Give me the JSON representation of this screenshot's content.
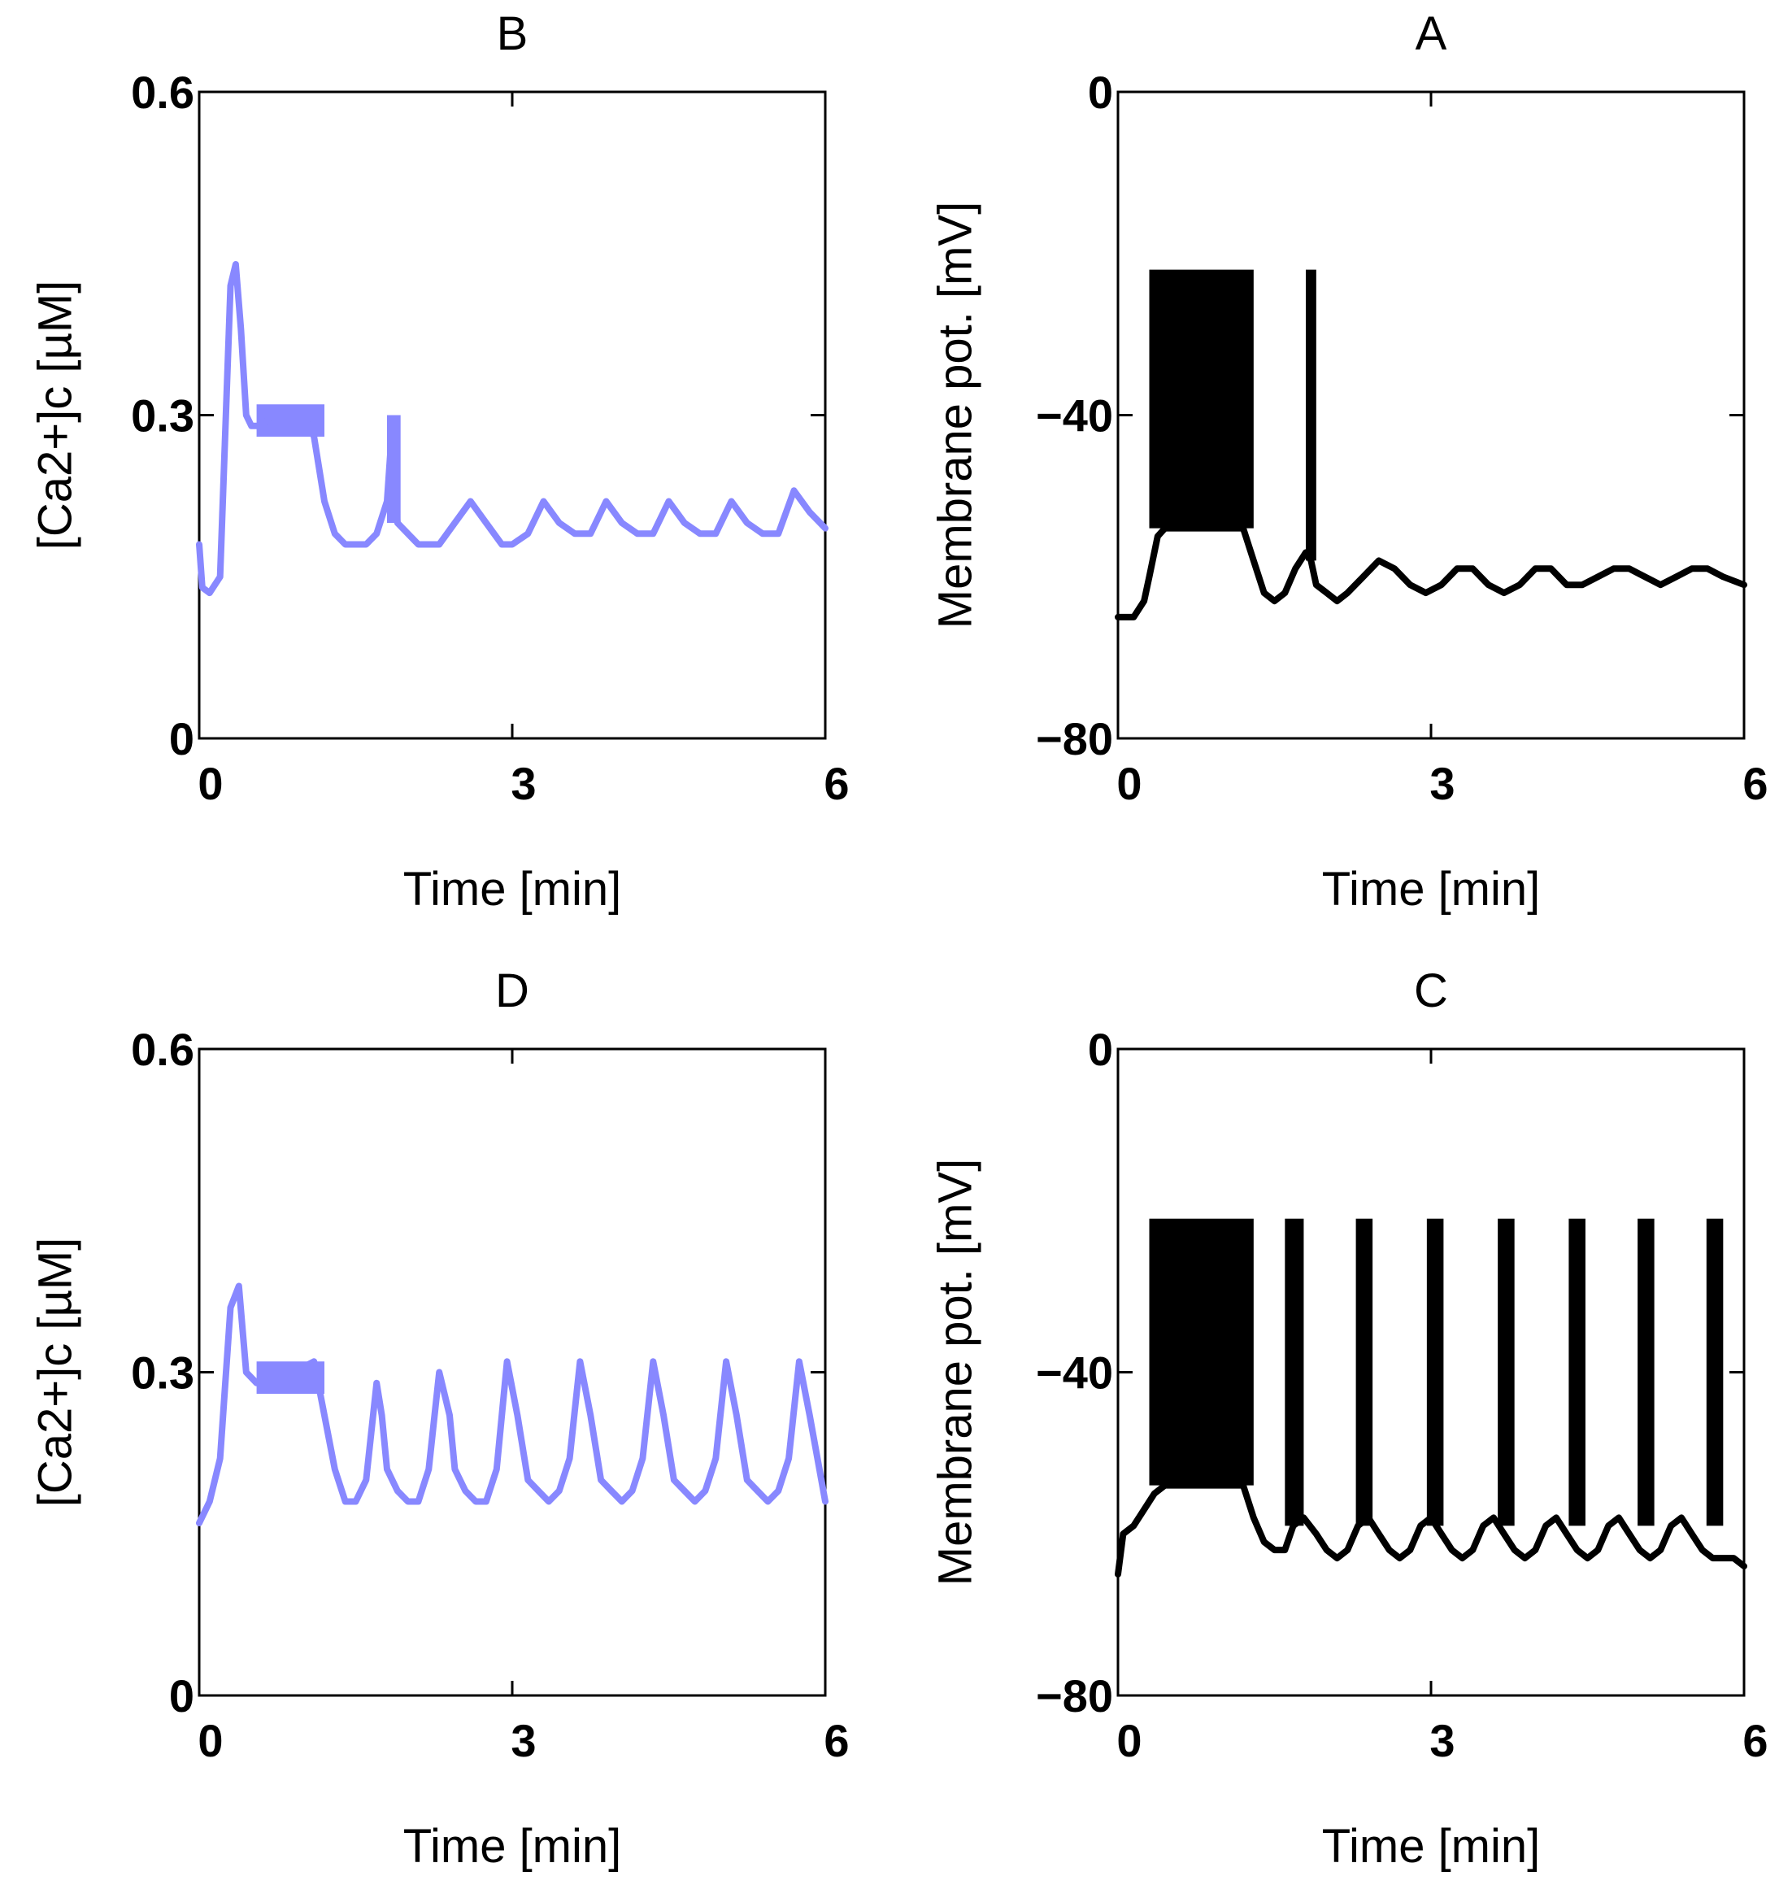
{
  "chart_data": [
    {
      "panel": "B",
      "type": "line",
      "title": "B",
      "xlabel": "Time  [min]",
      "ylabel": "[Ca2+]c [µM]",
      "xlim": [
        0,
        6
      ],
      "ylim": [
        0,
        0.6
      ],
      "xticks": [
        "0",
        "3",
        "6"
      ],
      "yticks": [
        "0",
        "0.3",
        "0.6"
      ],
      "grid": false,
      "color": "#8888ff",
      "series": [
        {
          "x": [
            0,
            0.03,
            0.1,
            0.2,
            0.3,
            0.35,
            0.4,
            0.45,
            0.5,
            0.6,
            0.7,
            0.8,
            0.9,
            1.0,
            1.1,
            1.2,
            1.3,
            1.4,
            1.5,
            1.6,
            1.7,
            1.8,
            1.85,
            1.9,
            2.0,
            2.1,
            2.2,
            2.3,
            2.45,
            2.6,
            2.75,
            2.9,
            3.0,
            3.15,
            3.3,
            3.45,
            3.6,
            3.75,
            3.9,
            4.05,
            4.2,
            4.35,
            4.5,
            4.65,
            4.8,
            4.95,
            5.1,
            5.25,
            5.4,
            5.55,
            5.7,
            5.85,
            6.0
          ],
          "y": [
            0.18,
            0.14,
            0.135,
            0.15,
            0.42,
            0.44,
            0.38,
            0.3,
            0.29,
            0.29,
            0.3,
            0.3,
            0.3,
            0.3,
            0.28,
            0.22,
            0.19,
            0.18,
            0.18,
            0.18,
            0.19,
            0.22,
            0.29,
            0.2,
            0.19,
            0.18,
            0.18,
            0.18,
            0.2,
            0.22,
            0.2,
            0.18,
            0.18,
            0.19,
            0.22,
            0.2,
            0.19,
            0.19,
            0.22,
            0.2,
            0.19,
            0.19,
            0.22,
            0.2,
            0.19,
            0.19,
            0.22,
            0.2,
            0.19,
            0.19,
            0.23,
            0.21,
            0.195
          ]
        }
      ],
      "bands": [
        {
          "x": [
            0.55,
            1.2
          ],
          "y": [
            0.28,
            0.31
          ]
        },
        {
          "x": [
            1.8,
            1.93
          ],
          "y": [
            0.2,
            0.3
          ]
        }
      ]
    },
    {
      "panel": "A",
      "type": "line",
      "title": "A",
      "xlabel": "Time  [min]",
      "ylabel": "Membrane pot.  [mV]",
      "xlim": [
        0,
        6
      ],
      "ylim": [
        -80,
        0
      ],
      "xticks": [
        "0",
        "3",
        "6"
      ],
      "yticks": [
        "−80",
        "−40",
        "0"
      ],
      "grid": false,
      "color": "#000000",
      "series": [
        {
          "x": [
            0,
            0.15,
            0.25,
            0.3,
            0.38,
            0.45,
            1.2,
            1.3,
            1.4,
            1.5,
            1.6,
            1.7,
            1.8,
            1.85,
            1.9,
            2.0,
            2.1,
            2.2,
            2.35,
            2.5,
            2.65,
            2.8,
            2.95,
            3.1,
            3.25,
            3.4,
            3.55,
            3.7,
            3.85,
            4.0,
            4.15,
            4.3,
            4.45,
            4.6,
            4.75,
            4.9,
            5.05,
            5.2,
            5.35,
            5.5,
            5.65,
            5.8,
            6.0
          ],
          "y": [
            -65,
            -65,
            -63,
            -60,
            -55,
            -54,
            -54,
            -58,
            -62,
            -63,
            -62,
            -59,
            -57,
            -58,
            -61,
            -62,
            -63,
            -62,
            -60,
            -58,
            -59,
            -61,
            -62,
            -61,
            -59,
            -59,
            -61,
            -62,
            -61,
            -59,
            -59,
            -61,
            -61,
            -60,
            -59,
            -59,
            -60,
            -61,
            -60,
            -59,
            -59,
            -60,
            -61
          ]
        }
      ],
      "bands": [
        {
          "x": [
            0.3,
            1.3
          ],
          "y": [
            -54,
            -22
          ]
        },
        {
          "x": [
            1.8,
            1.9
          ],
          "y": [
            -58,
            -22
          ]
        }
      ]
    },
    {
      "panel": "D",
      "type": "line",
      "title": "D",
      "xlabel": "Time  [min]",
      "ylabel": "[Ca2+]c [µM]",
      "xlim": [
        0,
        6
      ],
      "ylim": [
        0,
        0.6
      ],
      "xticks": [
        "0",
        "3",
        "6"
      ],
      "yticks": [
        "0",
        "0.3",
        "0.6"
      ],
      "grid": false,
      "color": "#8888ff",
      "series": [
        {
          "x": [
            0,
            0.1,
            0.2,
            0.3,
            0.38,
            0.45,
            0.55,
            0.7,
            0.9,
            1.1,
            1.2,
            1.3,
            1.4,
            1.5,
            1.6,
            1.7,
            1.75,
            1.8,
            1.9,
            2.0,
            2.1,
            2.2,
            2.3,
            2.4,
            2.45,
            2.55,
            2.65,
            2.75,
            2.85,
            2.95,
            3.05,
            3.15,
            3.25,
            3.35,
            3.45,
            3.55,
            3.65,
            3.75,
            3.85,
            3.95,
            4.05,
            4.15,
            4.25,
            4.35,
            4.45,
            4.55,
            4.65,
            4.75,
            4.85,
            4.95,
            5.05,
            5.15,
            5.25,
            5.35,
            5.45,
            5.55,
            5.65,
            5.75,
            5.85,
            6.0
          ],
          "y": [
            0.16,
            0.18,
            0.22,
            0.36,
            0.38,
            0.3,
            0.29,
            0.29,
            0.3,
            0.31,
            0.26,
            0.21,
            0.18,
            0.18,
            0.2,
            0.29,
            0.26,
            0.21,
            0.19,
            0.18,
            0.18,
            0.21,
            0.3,
            0.26,
            0.21,
            0.19,
            0.18,
            0.18,
            0.21,
            0.31,
            0.26,
            0.2,
            0.19,
            0.18,
            0.19,
            0.22,
            0.31,
            0.26,
            0.2,
            0.19,
            0.18,
            0.19,
            0.22,
            0.31,
            0.26,
            0.2,
            0.19,
            0.18,
            0.19,
            0.22,
            0.31,
            0.26,
            0.2,
            0.19,
            0.18,
            0.19,
            0.22,
            0.31,
            0.26,
            0.18
          ]
        }
      ],
      "bands": [
        {
          "x": [
            0.55,
            1.2
          ],
          "y": [
            0.28,
            0.31
          ]
        }
      ]
    },
    {
      "panel": "C",
      "type": "line",
      "title": "C",
      "xlabel": "Time  [min]",
      "ylabel": "Membrane pot.  [mV]",
      "xlim": [
        0,
        6
      ],
      "ylim": [
        -80,
        0
      ],
      "xticks": [
        "0",
        "3",
        "6"
      ],
      "yticks": [
        "−80",
        "−40",
        "0"
      ],
      "grid": false,
      "color": "#000000",
      "series": [
        {
          "x": [
            0,
            0.05,
            0.15,
            0.25,
            0.35,
            0.45,
            1.2,
            1.3,
            1.4,
            1.5,
            1.6,
            1.68,
            1.78,
            1.9,
            2.0,
            2.1,
            2.2,
            2.3,
            2.4,
            2.5,
            2.6,
            2.7,
            2.8,
            2.9,
            3.0,
            3.1,
            3.2,
            3.3,
            3.4,
            3.5,
            3.6,
            3.7,
            3.8,
            3.9,
            4.0,
            4.1,
            4.2,
            4.3,
            4.4,
            4.5,
            4.6,
            4.7,
            4.8,
            4.9,
            5.0,
            5.1,
            5.2,
            5.3,
            5.4,
            5.5,
            5.6,
            5.7,
            5.8,
            5.9,
            6.0
          ],
          "y": [
            -65,
            -60,
            -59,
            -57,
            -55,
            -54,
            -54,
            -58,
            -61,
            -62,
            -62,
            -59,
            -58,
            -60,
            -62,
            -63,
            -62,
            -59,
            -58,
            -60,
            -62,
            -63,
            -62,
            -59,
            -58,
            -60,
            -62,
            -63,
            -62,
            -59,
            -58,
            -60,
            -62,
            -63,
            -62,
            -59,
            -58,
            -60,
            -62,
            -63,
            -62,
            -59,
            -58,
            -60,
            -62,
            -63,
            -62,
            -59,
            -58,
            -60,
            -62,
            -63,
            -63,
            -63,
            -64
          ]
        }
      ],
      "bands": [
        {
          "x": [
            0.3,
            1.3
          ],
          "y": [
            -54,
            -21
          ]
        },
        {
          "x": [
            1.6,
            1.78
          ],
          "y": [
            -59,
            -21
          ]
        },
        {
          "x": [
            2.28,
            2.44
          ],
          "y": [
            -59,
            -21
          ]
        },
        {
          "x": [
            2.96,
            3.12
          ],
          "y": [
            -59,
            -21
          ]
        },
        {
          "x": [
            3.64,
            3.8
          ],
          "y": [
            -59,
            -21
          ]
        },
        {
          "x": [
            4.32,
            4.48
          ],
          "y": [
            -59,
            -21
          ]
        },
        {
          "x": [
            4.98,
            5.14
          ],
          "y": [
            -59,
            -21
          ]
        },
        {
          "x": [
            5.64,
            5.8
          ],
          "y": [
            -59,
            -21
          ]
        }
      ]
    }
  ]
}
